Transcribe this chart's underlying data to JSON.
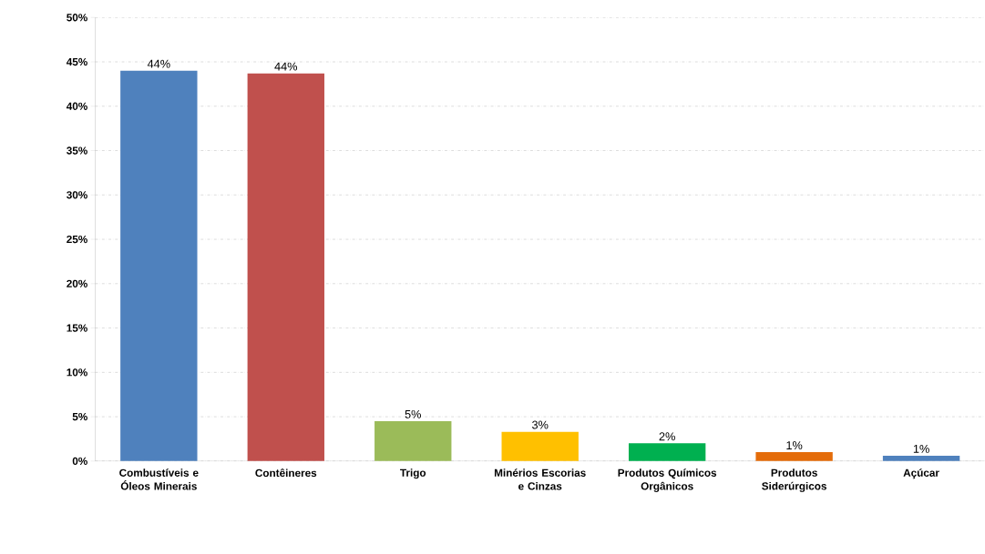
{
  "chart_data": {
    "type": "bar",
    "categories": [
      "Combustíveis e Óleos Minerais",
      "Contêineres",
      "Trigo",
      "Minérios Escorias e Cinzas",
      "Produtos Químicos Orgânicos",
      "Produtos Siderúrgicos",
      "Açúcar"
    ],
    "values": [
      44,
      43.7,
      4.5,
      3.3,
      2.0,
      1.0,
      0.6
    ],
    "colors": [
      "#4f81bd",
      "#c0504d",
      "#9bbb59",
      "#ffc000",
      "#00b050",
      "#e46c0a",
      "#4f81bd"
    ],
    "value_labels": [
      "44%",
      "44%",
      "5%",
      "3%",
      "2%",
      "1%",
      "1%"
    ],
    "ylim": [
      0,
      50
    ],
    "yticks": [
      {
        "value": 0,
        "label": "0%"
      },
      {
        "value": 5,
        "label": "5%"
      },
      {
        "value": 10,
        "label": "10%"
      },
      {
        "value": 15,
        "label": "15%"
      },
      {
        "value": 20,
        "label": "20%"
      },
      {
        "value": 25,
        "label": "25%"
      },
      {
        "value": 30,
        "label": "30%"
      },
      {
        "value": 35,
        "label": "35%"
      },
      {
        "value": 40,
        "label": "40%"
      },
      {
        "value": 45,
        "label": "45%"
      },
      {
        "value": 50,
        "label": "50%"
      }
    ],
    "grid": "y"
  }
}
